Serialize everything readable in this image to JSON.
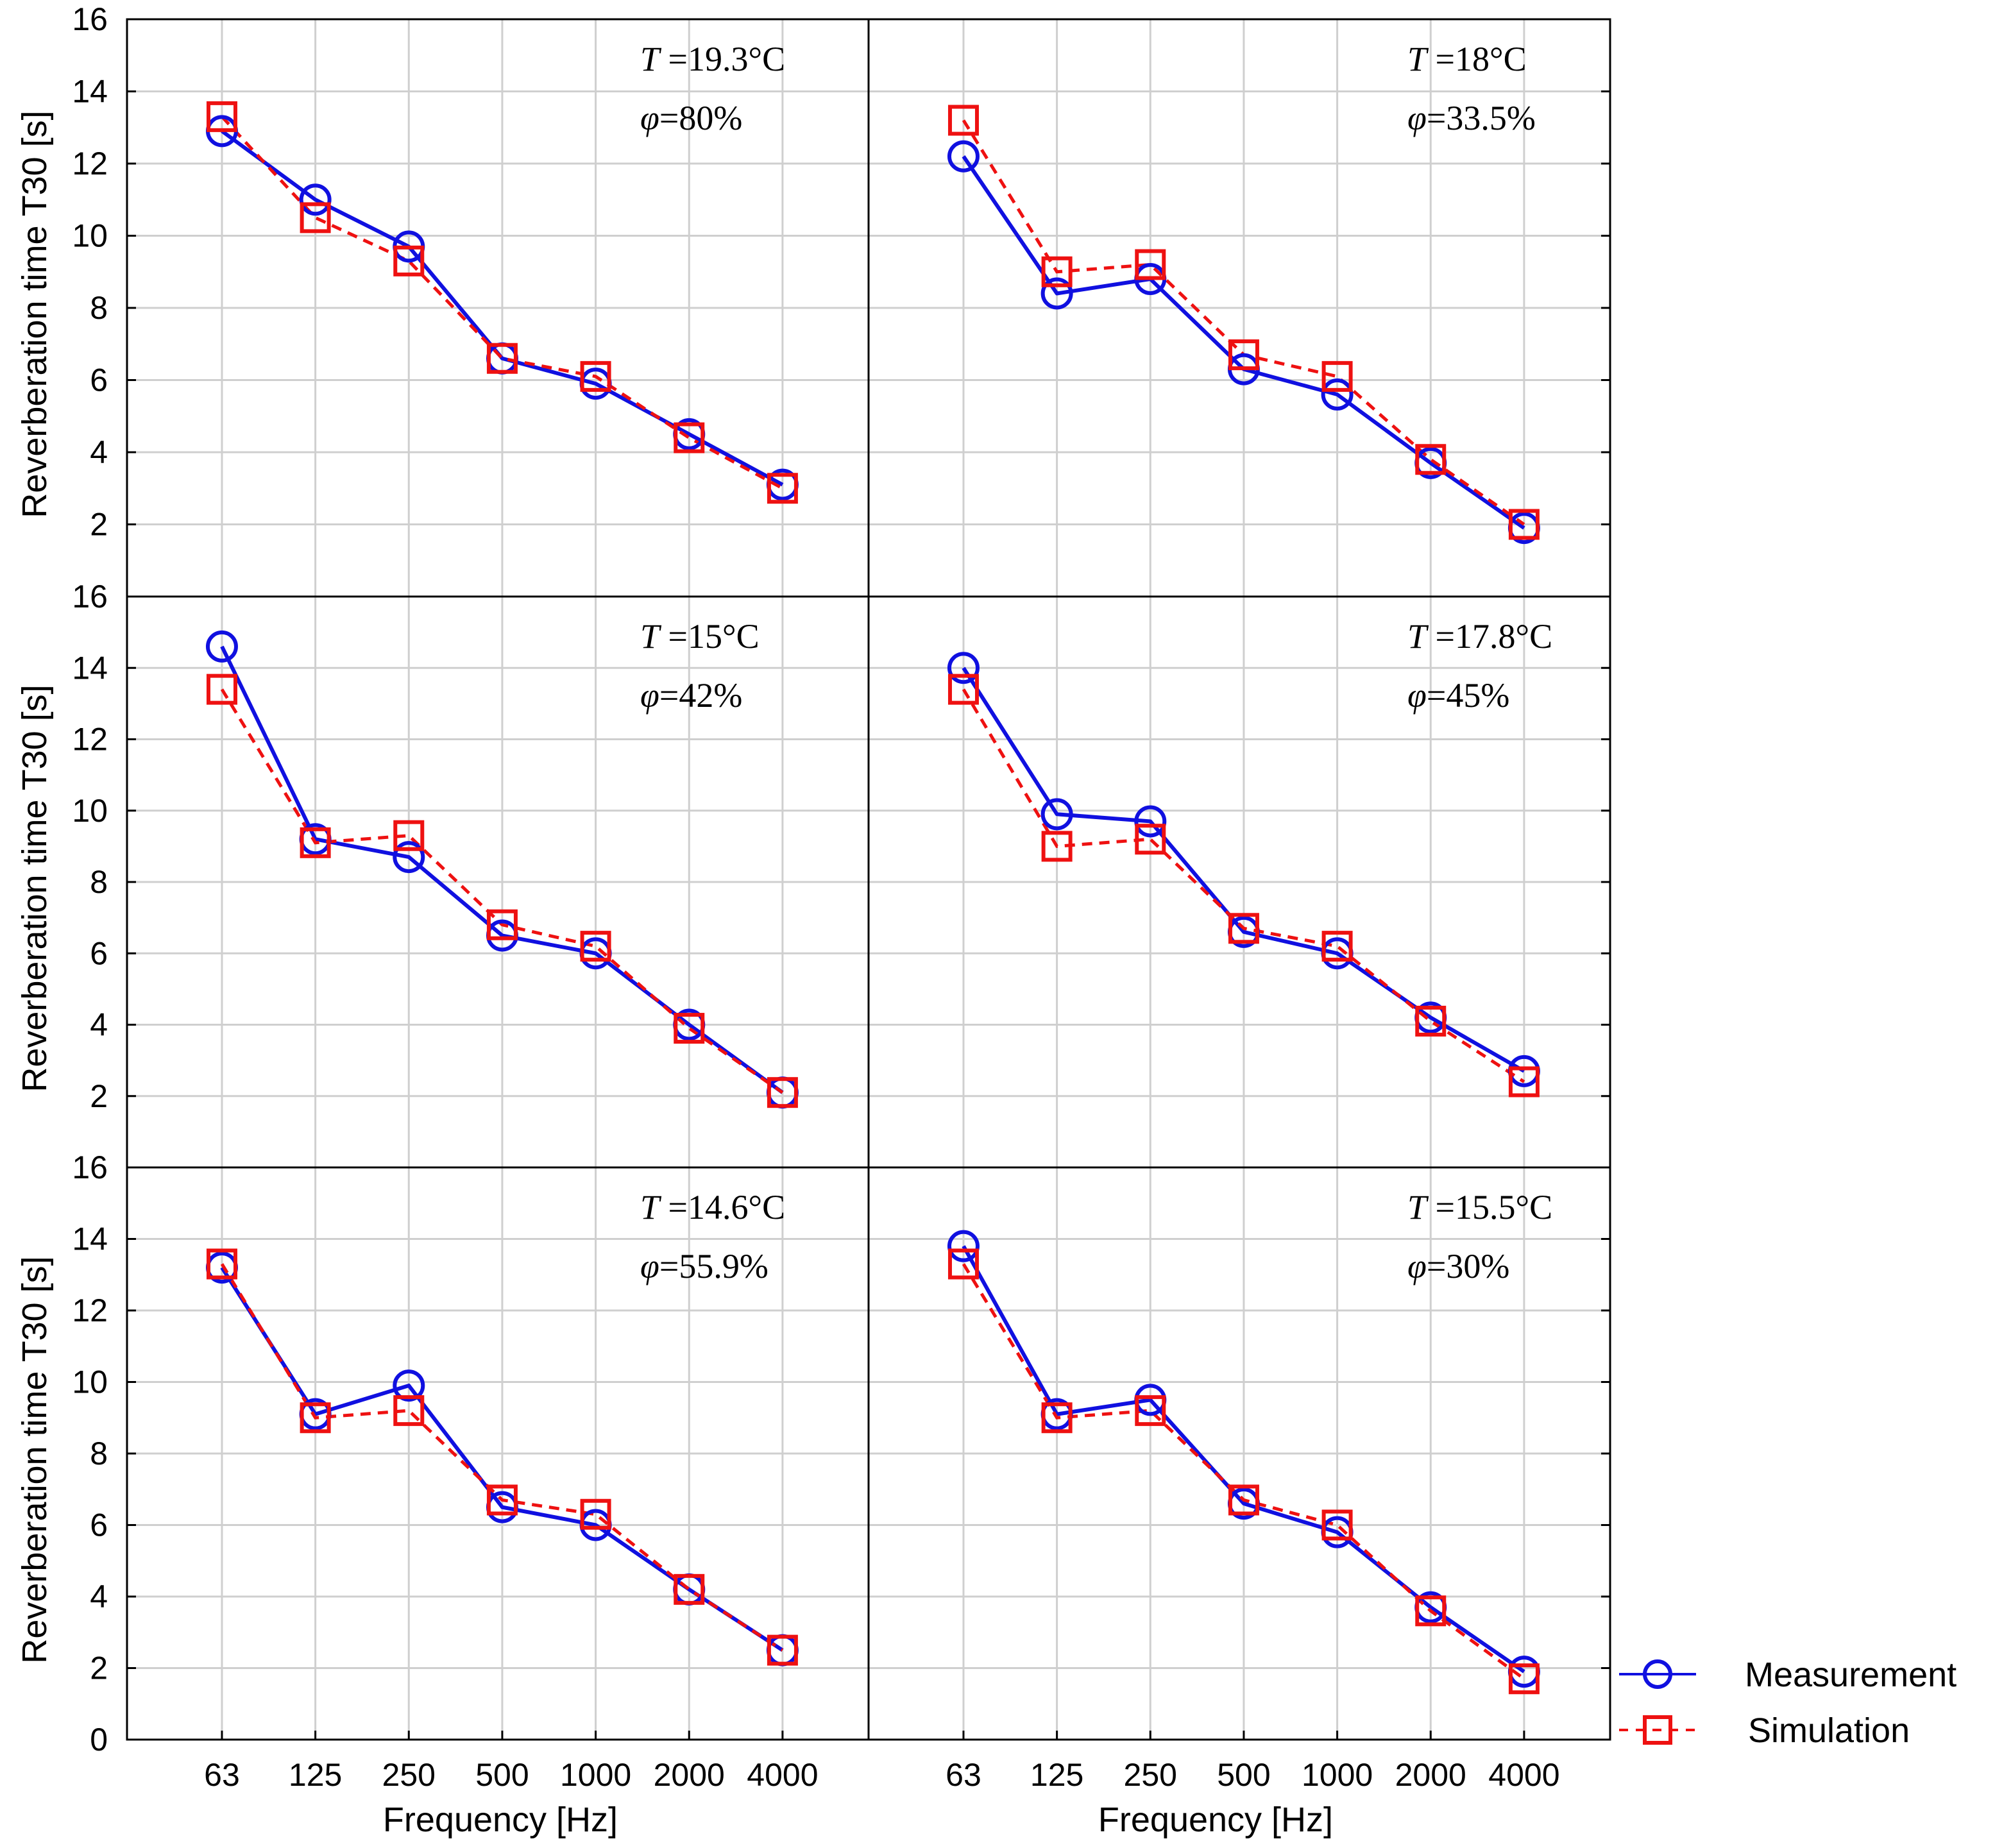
{
  "colors": {
    "measurement": "#1010e0",
    "simulation": "#ee1111",
    "grid": "#cfcfcf",
    "frame": "#000000"
  },
  "axis_labels": {
    "x": "Frequency    [Hz]",
    "y": "Reverberation time T30    [s]"
  },
  "legend": {
    "measurement": "Measurement",
    "simulation": "Simulation"
  },
  "conditions": [
    {
      "t_symbol": "T",
      "t_value": " =19.3°C",
      "phi_symbol": "φ",
      "phi_value": "=80%"
    },
    {
      "t_symbol": "T",
      "t_value": " =18°C",
      "phi_symbol": "φ",
      "phi_value": "=33.5%"
    },
    {
      "t_symbol": "T",
      "t_value": " =15°C",
      "phi_symbol": "φ",
      "phi_value": "=42%"
    },
    {
      "t_symbol": "T",
      "t_value": " =17.8°C",
      "phi_symbol": "φ",
      "phi_value": "=45%"
    },
    {
      "t_symbol": "T",
      "t_value": " =14.6°C",
      "phi_symbol": "φ",
      "phi_value": "=55.9%"
    },
    {
      "t_symbol": "T",
      "t_value": " =15.5°C",
      "phi_symbol": "φ",
      "phi_value": "=30%"
    }
  ],
  "chart_data": [
    {
      "type": "line",
      "title": "T = 19.3°C, φ = 80%",
      "xlabel": "Frequency [Hz]",
      "ylabel": "Reverberation time T30 [s]",
      "categories": [
        "63",
        "125",
        "250",
        "500",
        "1000",
        "2000",
        "4000"
      ],
      "ylim": [
        0,
        16
      ],
      "yticks": [
        2,
        4,
        6,
        8,
        10,
        12,
        14,
        16
      ],
      "series": [
        {
          "name": "Measurement",
          "values": [
            12.9,
            11.0,
            9.7,
            6.6,
            5.9,
            4.5,
            3.1
          ]
        },
        {
          "name": "Simulation",
          "values": [
            13.3,
            10.5,
            9.3,
            6.6,
            6.1,
            4.4,
            3.0
          ]
        }
      ]
    },
    {
      "type": "line",
      "title": "T = 18°C, φ = 33.5%",
      "xlabel": "Frequency [Hz]",
      "ylabel": "Reverberation time T30 [s]",
      "categories": [
        "63",
        "125",
        "250",
        "500",
        "1000",
        "2000",
        "4000"
      ],
      "ylim": [
        0,
        16
      ],
      "yticks": [
        2,
        4,
        6,
        8,
        10,
        12,
        14,
        16
      ],
      "series": [
        {
          "name": "Measurement",
          "values": [
            12.2,
            8.4,
            8.8,
            6.3,
            5.6,
            3.7,
            1.9
          ]
        },
        {
          "name": "Simulation",
          "values": [
            13.2,
            9.0,
            9.2,
            6.7,
            6.1,
            3.8,
            2.0
          ]
        }
      ]
    },
    {
      "type": "line",
      "title": "T = 15°C, φ = 42%",
      "xlabel": "Frequency [Hz]",
      "ylabel": "Reverberation time T30 [s]",
      "categories": [
        "63",
        "125",
        "250",
        "500",
        "1000",
        "2000",
        "4000"
      ],
      "ylim": [
        0,
        16
      ],
      "yticks": [
        2,
        4,
        6,
        8,
        10,
        12,
        14,
        16
      ],
      "series": [
        {
          "name": "Measurement",
          "values": [
            14.6,
            9.2,
            8.7,
            6.5,
            6.0,
            4.0,
            2.1
          ]
        },
        {
          "name": "Simulation",
          "values": [
            13.4,
            9.1,
            9.3,
            6.8,
            6.2,
            3.9,
            2.1
          ]
        }
      ]
    },
    {
      "type": "line",
      "title": "T = 17.8°C, φ = 45%",
      "xlabel": "Frequency [Hz]",
      "ylabel": "Reverberation time T30 [s]",
      "categories": [
        "63",
        "125",
        "250",
        "500",
        "1000",
        "2000",
        "4000"
      ],
      "ylim": [
        0,
        16
      ],
      "yticks": [
        2,
        4,
        6,
        8,
        10,
        12,
        14,
        16
      ],
      "series": [
        {
          "name": "Measurement",
          "values": [
            14.0,
            9.9,
            9.7,
            6.6,
            6.0,
            4.2,
            2.7
          ]
        },
        {
          "name": "Simulation",
          "values": [
            13.4,
            9.0,
            9.2,
            6.7,
            6.2,
            4.1,
            2.4
          ]
        }
      ]
    },
    {
      "type": "line",
      "title": "T = 14.6°C, φ = 55.9%",
      "xlabel": "Frequency [Hz]",
      "ylabel": "Reverberation time T30 [s]",
      "categories": [
        "63",
        "125",
        "250",
        "500",
        "1000",
        "2000",
        "4000"
      ],
      "ylim": [
        0,
        16
      ],
      "yticks": [
        0,
        2,
        4,
        6,
        8,
        10,
        12,
        14,
        16
      ],
      "series": [
        {
          "name": "Measurement",
          "values": [
            13.2,
            9.1,
            9.9,
            6.5,
            6.0,
            4.2,
            2.5
          ]
        },
        {
          "name": "Simulation",
          "values": [
            13.3,
            9.0,
            9.2,
            6.7,
            6.3,
            4.2,
            2.5
          ]
        }
      ]
    },
    {
      "type": "line",
      "title": "T = 15.5°C, φ = 30%",
      "xlabel": "Frequency [Hz]",
      "ylabel": "Reverberation time T30 [s]",
      "categories": [
        "63",
        "125",
        "250",
        "500",
        "1000",
        "2000",
        "4000"
      ],
      "ylim": [
        0,
        16
      ],
      "yticks": [
        2,
        4,
        6,
        8,
        10,
        12,
        14,
        16
      ],
      "series": [
        {
          "name": "Measurement",
          "values": [
            13.8,
            9.1,
            9.5,
            6.6,
            5.8,
            3.7,
            1.9
          ]
        },
        {
          "name": "Simulation",
          "values": [
            13.3,
            9.0,
            9.2,
            6.7,
            6.0,
            3.6,
            1.7
          ]
        }
      ]
    }
  ]
}
